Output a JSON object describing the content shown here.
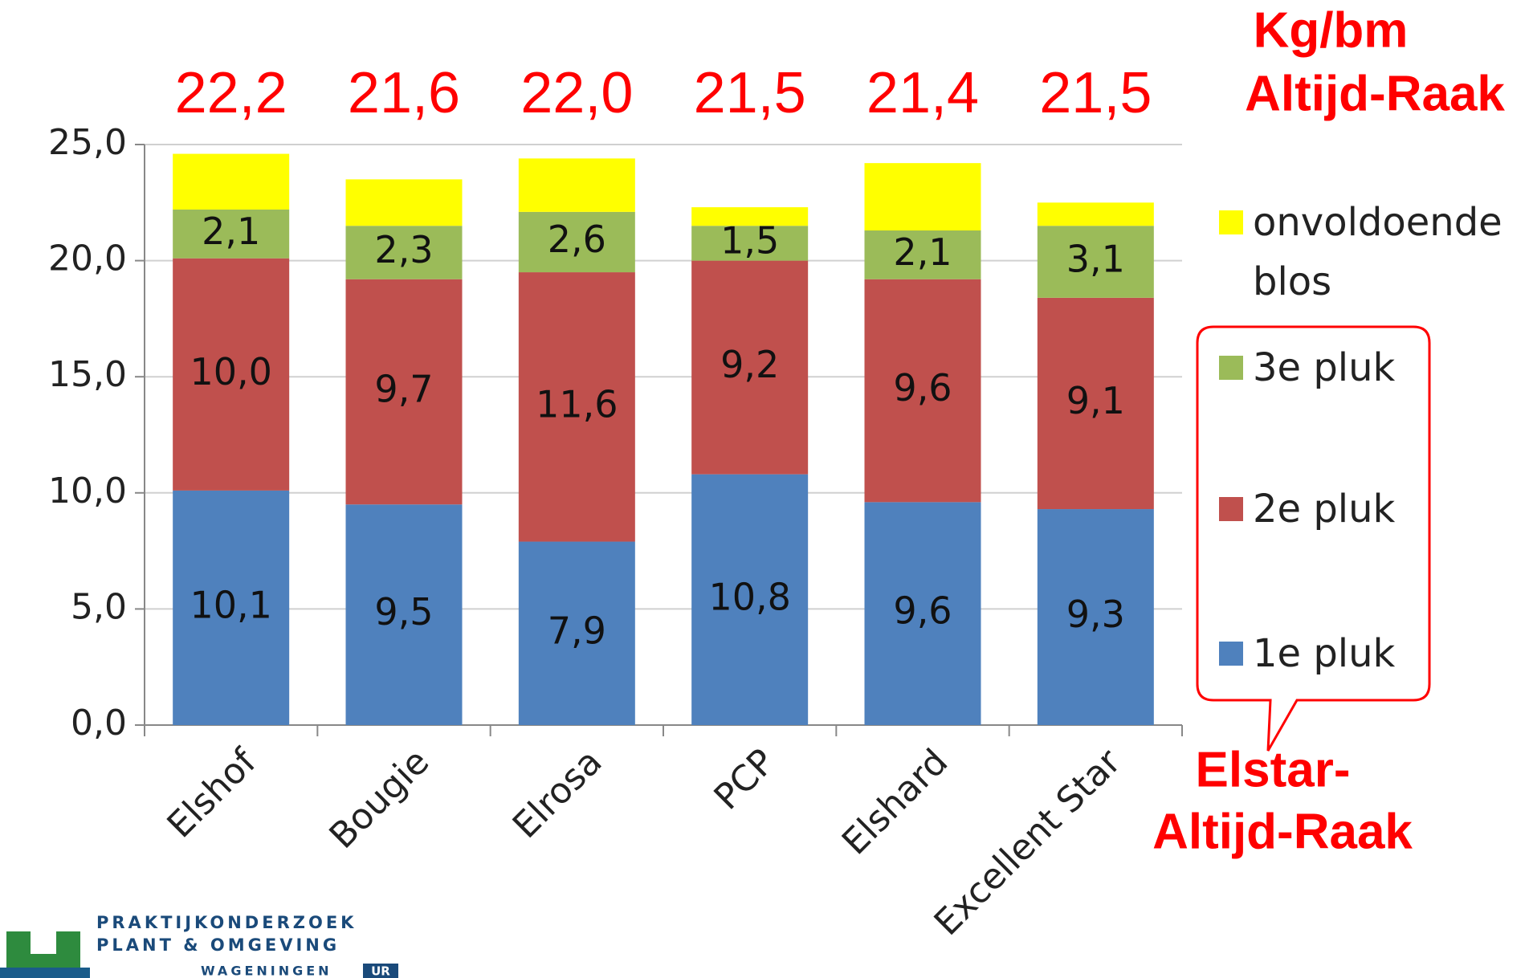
{
  "chart_data": {
    "type": "stacked_bar",
    "categories": [
      "Elshof",
      "Bougie",
      "Elrosa",
      "PCP",
      "Elshard",
      "Excellent Star"
    ],
    "series": [
      {
        "name": "1e pluk",
        "color": "#4f81bd",
        "values": [
          10.1,
          9.5,
          7.9,
          10.8,
          9.6,
          9.3
        ],
        "value_labels": [
          "10,1",
          "9,5",
          "7,9",
          "10,8",
          "9,6",
          "9,3"
        ]
      },
      {
        "name": "2e pluk",
        "color": "#c0504d",
        "values": [
          10.0,
          9.7,
          11.6,
          9.2,
          9.6,
          9.1
        ],
        "value_labels": [
          "10,0",
          "9,7",
          "11,6",
          "9,2",
          "9,6",
          "9,1"
        ]
      },
      {
        "name": "3e pluk",
        "color": "#9bbb59",
        "values": [
          2.1,
          2.3,
          2.6,
          1.5,
          2.1,
          3.1
        ],
        "value_labels": [
          "2,1",
          "2,3",
          "2,6",
          "1,5",
          "2,1",
          "3,1"
        ]
      },
      {
        "name": "onvoldoende blos",
        "color": "#ffff00",
        "values": [
          2.4,
          2.0,
          2.3,
          0.8,
          2.9,
          1.0
        ]
      }
    ],
    "ylim": [
      0,
      25
    ],
    "yticks": [
      {
        "value": 0,
        "label": "0,0"
      },
      {
        "value": 5,
        "label": "5,0"
      },
      {
        "value": 10,
        "label": "10,0"
      },
      {
        "value": 15,
        "label": "15,0"
      },
      {
        "value": 20,
        "label": "20,0"
      },
      {
        "value": 25,
        "label": "25,0"
      }
    ],
    "grid": true,
    "top_labels": [
      "22,2",
      "21,6",
      "22,0",
      "21,5",
      "21,4",
      "21,5"
    ],
    "annotations": [
      "Kg/bm",
      "Altijd-Raak",
      "Elstar-",
      "Altijd-Raak"
    ],
    "logo": [
      "PRAKTIJKONDERZOEK",
      "PLANT & OMGEVING",
      "WAGENINGEN",
      "UR"
    ]
  }
}
